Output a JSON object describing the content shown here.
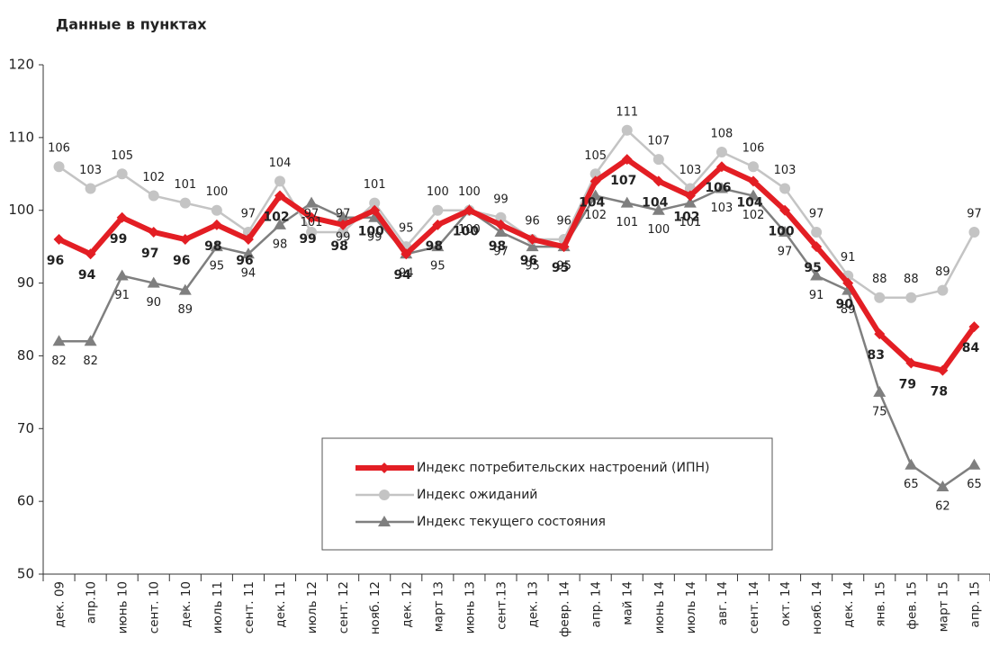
{
  "chart_data": {
    "type": "line",
    "title": "Данные в пунктах",
    "categories": [
      "дек. 09",
      "апр.10",
      "июнь 10",
      "сент. 10",
      "дек. 10",
      "июль 11",
      "сент. 11",
      "дек. 11",
      "июль 12",
      "сент. 12",
      "нояб. 12",
      "дек. 12",
      "март 13",
      "июнь 13",
      "сент.13",
      "дек. 13",
      "февр. 14",
      "апр. 14",
      "май 14",
      "июнь 14",
      "июль 14",
      "авг. 14",
      "сент. 14",
      "окт. 14",
      "нояб. 14",
      "дек. 14",
      "янв. 15",
      "фев. 15",
      "март 15",
      "апр. 15"
    ],
    "series": [
      {
        "name": "Индекс потребительских настроений (ИПН)",
        "color": "#e31e24",
        "marker": "diamond",
        "values": [
          96,
          94,
          99,
          97,
          96,
          98,
          96,
          102,
          99,
          98,
          100,
          94,
          98,
          100,
          98,
          96,
          95,
          104,
          107,
          104,
          102,
          106,
          104,
          100,
          95,
          90,
          83,
          79,
          78,
          84
        ]
      },
      {
        "name": "Индекс ожиданий",
        "color": "#c4c4c4",
        "marker": "circle",
        "values": [
          106,
          103,
          105,
          102,
          101,
          100,
          97,
          104,
          97,
          97,
          101,
          95,
          100,
          100,
          99,
          96,
          96,
          105,
          111,
          107,
          103,
          108,
          106,
          103,
          97,
          91,
          88,
          88,
          89,
          97
        ]
      },
      {
        "name": "Индекс текущего состояния",
        "color": "#7f7f7f",
        "marker": "triangle",
        "values": [
          82,
          82,
          91,
          90,
          89,
          95,
          94,
          98,
          101,
          99,
          99,
          94,
          95,
          100,
          97,
          95,
          95,
          102,
          101,
          100,
          101,
          103,
          102,
          97,
          91,
          89,
          75,
          65,
          62,
          65
        ]
      }
    ],
    "ylim": [
      50,
      120
    ],
    "yticks": [
      50,
      60,
      70,
      80,
      90,
      100,
      110,
      120
    ]
  }
}
